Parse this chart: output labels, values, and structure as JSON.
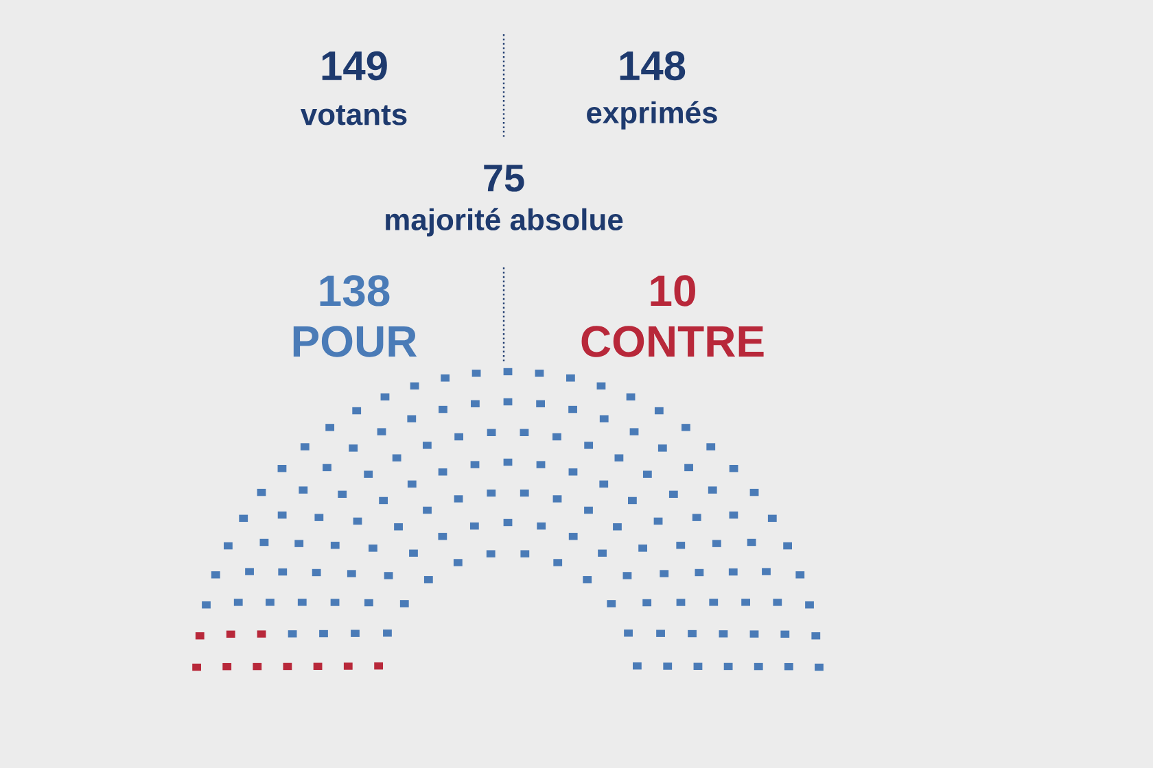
{
  "chart_data": {
    "type": "other",
    "categories": [
      "POUR",
      "CONTRE"
    ],
    "values": [
      138,
      10
    ],
    "colors": [
      "#4a7bb7",
      "#b8283a"
    ],
    "data_labels": true,
    "annotations": [
      "149",
      "votants",
      "148",
      "exprimés",
      "75",
      "majorité absolue"
    ]
  }
}
